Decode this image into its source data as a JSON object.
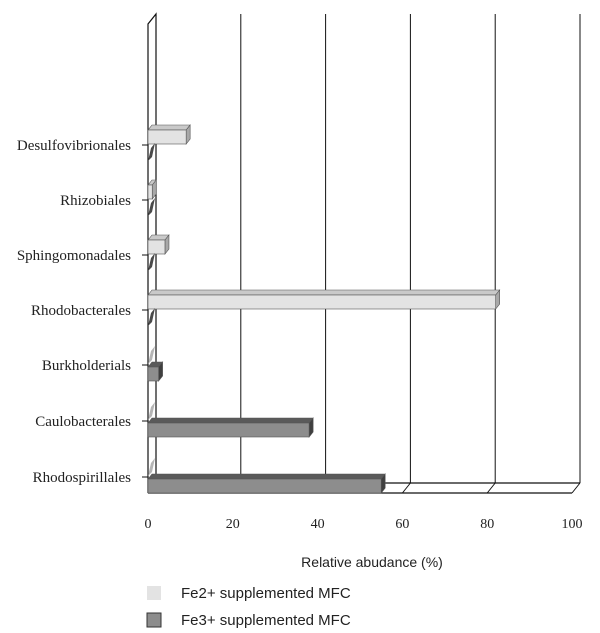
{
  "chart_data": {
    "type": "bar",
    "orientation": "horizontal",
    "style": "3d",
    "categories": [
      "Desulfovibrionales",
      "Rhizobiales",
      "Sphingomonadales",
      "Rhodobacterales",
      "Burkholderials",
      "Caulobacterales",
      "Rhodospirillales"
    ],
    "series": [
      {
        "name": "Fe2+ supplemented MFC",
        "color": "#e3e3e3",
        "side_color": "#a8a8a8",
        "values": [
          9,
          1,
          4,
          82,
          0,
          0,
          0
        ]
      },
      {
        "name": "Fe3+ supplemented MFC",
        "color": "#8d8d8d",
        "side_color": "#3f3f3f",
        "values": [
          0,
          0,
          0,
          0,
          2.5,
          38,
          55
        ]
      }
    ],
    "xlabel": "Relative abudance (%)",
    "xlim": [
      0,
      100
    ],
    "xticks": [
      "0",
      "20",
      "40",
      "60",
      "80",
      "100"
    ],
    "grid": true,
    "legend_position": "bottom-left"
  }
}
